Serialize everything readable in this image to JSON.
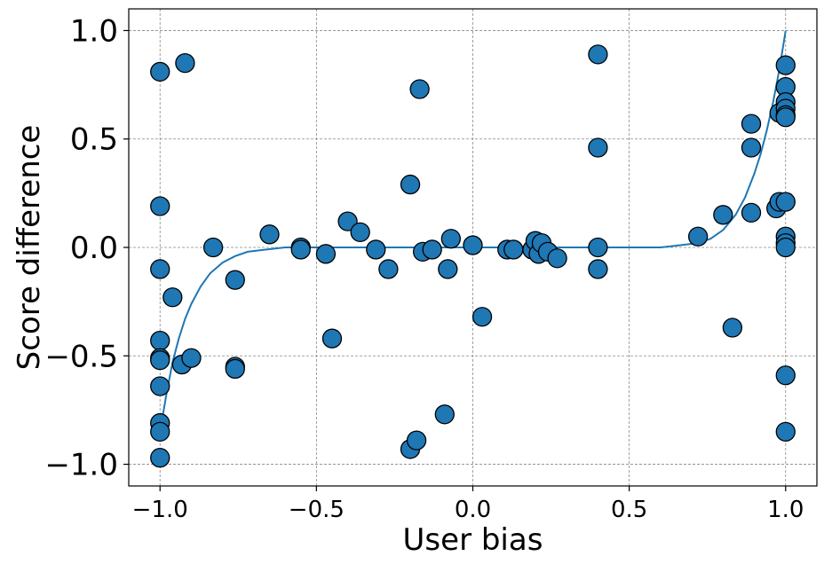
{
  "chart_data": {
    "type": "scatter",
    "xlabel": "User bias",
    "ylabel": "Score difference",
    "xlim": [
      -1.1,
      1.1
    ],
    "ylim": [
      -1.1,
      1.1
    ],
    "x_ticks": [
      -1.0,
      -0.5,
      0.0,
      0.5,
      1.0
    ],
    "y_ticks": [
      -1.0,
      -0.5,
      0.0,
      0.5,
      1.0
    ],
    "x_tick_labels": [
      "−1.0",
      "−0.5",
      "0.0",
      "0.5",
      "1.0"
    ],
    "y_tick_labels": [
      "−1.0",
      "−0.5",
      "0.0",
      "0.5",
      "1.0"
    ],
    "grid": true,
    "colors": {
      "points": "#1f77b4",
      "edge": "#000000",
      "curve": "#1f77b4",
      "grid": "#888888"
    },
    "series": [
      {
        "type": "scatter",
        "points": [
          [
            -1.0,
            0.81
          ],
          [
            -0.92,
            0.85
          ],
          [
            -1.0,
            0.19
          ],
          [
            -1.0,
            -0.1
          ],
          [
            -0.96,
            -0.23
          ],
          [
            -1.0,
            -0.43
          ],
          [
            -1.0,
            -0.51
          ],
          [
            -1.0,
            -0.52
          ],
          [
            -0.93,
            -0.54
          ],
          [
            -0.9,
            -0.51
          ],
          [
            -1.0,
            -0.64
          ],
          [
            -1.0,
            -0.81
          ],
          [
            -1.0,
            -0.85
          ],
          [
            -1.0,
            -0.97
          ],
          [
            -0.83,
            0.0
          ],
          [
            -0.76,
            -0.15
          ],
          [
            -0.76,
            -0.55
          ],
          [
            -0.76,
            -0.56
          ],
          [
            -0.65,
            0.06
          ],
          [
            -0.55,
            0.0
          ],
          [
            -0.55,
            -0.01
          ],
          [
            -0.47,
            -0.03
          ],
          [
            -0.45,
            -0.42
          ],
          [
            -0.4,
            0.12
          ],
          [
            -0.36,
            0.07
          ],
          [
            -0.31,
            -0.01
          ],
          [
            -0.27,
            -0.1
          ],
          [
            -0.2,
            0.29
          ],
          [
            -0.2,
            -0.93
          ],
          [
            -0.18,
            -0.89
          ],
          [
            -0.17,
            0.73
          ],
          [
            -0.16,
            -0.02
          ],
          [
            -0.13,
            -0.01
          ],
          [
            -0.09,
            -0.77
          ],
          [
            -0.08,
            -0.1
          ],
          [
            -0.07,
            0.04
          ],
          [
            0.0,
            0.01
          ],
          [
            0.03,
            -0.32
          ],
          [
            0.11,
            -0.01
          ],
          [
            0.13,
            -0.01
          ],
          [
            0.19,
            -0.01
          ],
          [
            0.2,
            0.03
          ],
          [
            0.21,
            -0.03
          ],
          [
            0.22,
            0.02
          ],
          [
            0.24,
            -0.02
          ],
          [
            0.27,
            -0.05
          ],
          [
            0.4,
            0.89
          ],
          [
            0.4,
            0.46
          ],
          [
            0.4,
            0.0
          ],
          [
            0.4,
            -0.1
          ],
          [
            0.72,
            0.05
          ],
          [
            0.8,
            0.15
          ],
          [
            0.83,
            -0.37
          ],
          [
            0.89,
            0.57
          ],
          [
            0.89,
            0.46
          ],
          [
            0.89,
            0.16
          ],
          [
            0.97,
            0.18
          ],
          [
            0.98,
            0.21
          ],
          [
            0.98,
            0.62
          ],
          [
            1.0,
            0.84
          ],
          [
            1.0,
            0.74
          ],
          [
            1.0,
            0.67
          ],
          [
            1.0,
            0.64
          ],
          [
            1.0,
            0.61
          ],
          [
            1.0,
            0.6
          ],
          [
            1.0,
            0.21
          ],
          [
            1.0,
            0.05
          ],
          [
            1.0,
            0.02
          ],
          [
            1.0,
            0.0
          ],
          [
            1.0,
            -0.59
          ],
          [
            1.0,
            -0.85
          ]
        ]
      },
      {
        "type": "line",
        "points": [
          [
            -1.0,
            -0.85
          ],
          [
            -0.98,
            -0.68
          ],
          [
            -0.96,
            -0.53
          ],
          [
            -0.94,
            -0.42
          ],
          [
            -0.92,
            -0.33
          ],
          [
            -0.9,
            -0.26
          ],
          [
            -0.87,
            -0.18
          ],
          [
            -0.84,
            -0.12
          ],
          [
            -0.8,
            -0.07
          ],
          [
            -0.76,
            -0.04
          ],
          [
            -0.72,
            -0.02
          ],
          [
            -0.66,
            -0.01
          ],
          [
            -0.6,
            0.0
          ],
          [
            -0.5,
            0.0
          ],
          [
            0.0,
            0.0
          ],
          [
            0.5,
            0.0
          ],
          [
            0.6,
            0.0
          ],
          [
            0.66,
            0.01
          ],
          [
            0.72,
            0.02
          ],
          [
            0.76,
            0.04
          ],
          [
            0.8,
            0.08
          ],
          [
            0.84,
            0.15
          ],
          [
            0.87,
            0.23
          ],
          [
            0.9,
            0.34
          ],
          [
            0.92,
            0.43
          ],
          [
            0.94,
            0.54
          ],
          [
            0.96,
            0.67
          ],
          [
            0.98,
            0.82
          ],
          [
            1.0,
            1.0
          ]
        ]
      }
    ]
  }
}
